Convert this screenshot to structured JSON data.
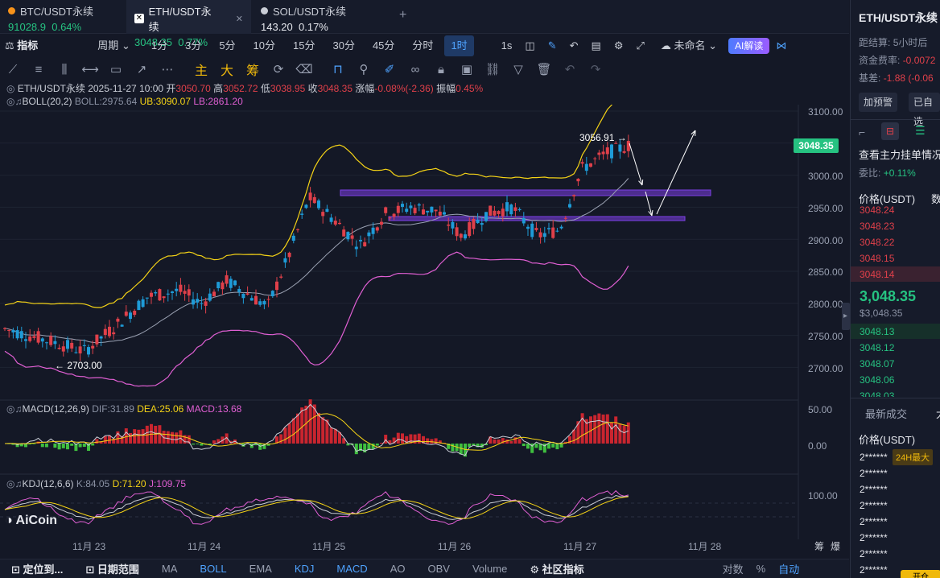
{
  "tabs": [
    {
      "symbol": "BTC/USDT永续",
      "price": "91028.9",
      "change": "0.64%",
      "color": "#26c281"
    },
    {
      "symbol": "ETH/USDT永续",
      "price": "3048.35",
      "change": "0.77%",
      "color": "#26c281"
    },
    {
      "symbol": "SOL/USDT永续",
      "price": "143.20",
      "change": "0.17%",
      "color": "#e6e8ee"
    }
  ],
  "toolbar": {
    "indicators": "指标",
    "period": "周期",
    "intervals": [
      "1分",
      "3分",
      "5分",
      "10分",
      "15分",
      "30分",
      "45分",
      "分时",
      "1时"
    ],
    "selected_interval": "1时",
    "one_s": "1s",
    "layout_name": "未命名",
    "ai_label": "AI解读"
  },
  "drawbar": {
    "main": "主",
    "big": "大",
    "chip": "筹"
  },
  "info": {
    "symbol": "ETH/USDT永续",
    "datetime": "2025-11-27 10:00",
    "open_label": "开",
    "open": "3050.70",
    "high_label": "高",
    "high": "3052.72",
    "low_label": "低",
    "low": "3038.95",
    "close_label": "收",
    "close": "3048.35",
    "chg_label": "涨幅",
    "chg": "-0.08%(-2.36)",
    "amp_label": "振幅",
    "amp": "0.45%"
  },
  "boll": {
    "name": "BOLL(20,2)",
    "boll": "BOLL:2975.64",
    "ub": "UB:3090.07",
    "lb": "LB:2861.20"
  },
  "macd": {
    "name": "MACD(12,26,9)",
    "dif": "DIF:31.89",
    "dea": "DEA:25.06",
    "macd": "MACD:13.68"
  },
  "kdj": {
    "name": "KDJ(12,6,6)",
    "k": "K:84.05",
    "d": "D:71.20",
    "j": "J:109.75"
  },
  "price_axis": [
    "3100.00",
    "3050.00",
    "3000.00",
    "2950.00",
    "2900.00",
    "2850.00",
    "2800.00",
    "2750.00",
    "2700.00"
  ],
  "macd_axis": [
    "50.00",
    "0.00"
  ],
  "kdj_axis": [
    "100.00"
  ],
  "current_price": "3048.35",
  "annotations": {
    "high": "3056.91 →",
    "low": "← 2703.00"
  },
  "dates": [
    "11月 23",
    "11月 24",
    "11月 25",
    "11月 26",
    "11月 27",
    "11月 28"
  ],
  "axis_corner": [
    "筹",
    "爆"
  ],
  "bottombar": {
    "locate": "定位到...",
    "range": "日期范围",
    "items": [
      "MA",
      "BOLL",
      "EMA",
      "KDJ",
      "MACD",
      "AO",
      "OBV",
      "Volume",
      "社区指标"
    ],
    "active": [
      "BOLL",
      "KDJ",
      "MACD"
    ],
    "right": [
      "对数",
      "%",
      "自动"
    ]
  },
  "right_panel": {
    "title": "ETH/USDT永续",
    "settle_label": "距结算:",
    "settle": "5小时后",
    "funding_label": "资金费率:",
    "funding": "-0.0072",
    "basis_label": "基差:",
    "basis": "-1.88 (-0.06",
    "alert_btn": "加预警",
    "auto_btn": "已自选",
    "orderbook_link": "查看主力挂单情况",
    "ratio_label": "委比:",
    "ratio": "+0.11%",
    "price_header": "价格(USDT)",
    "qty_header": "数",
    "asks": [
      "3048.24",
      "3048.23",
      "3048.22",
      "3048.15",
      "3048.14"
    ],
    "mid": "3,048.35",
    "mid_sub": "$3,048.35",
    "bids": [
      "3048.13",
      "3048.12",
      "3048.07",
      "3048.06",
      "3048.03"
    ],
    "trades_tab": "最新成交",
    "trades_tab2": "大",
    "trades_header": "价格(USDT)",
    "badge": "24H最大",
    "trades": [
      "2******",
      "2******",
      "2******",
      "2******",
      "2******",
      "2******",
      "2******",
      "2******"
    ],
    "bottom_btn": "开仓"
  },
  "logo": "AiCoin",
  "colors": {
    "up": "#e0404a",
    "down": "#1e9bd7",
    "ub": "#f5d316",
    "mid": "#9aa1b2",
    "lb": "#e05fd3",
    "purple_zone": "#7b3fe4"
  }
}
